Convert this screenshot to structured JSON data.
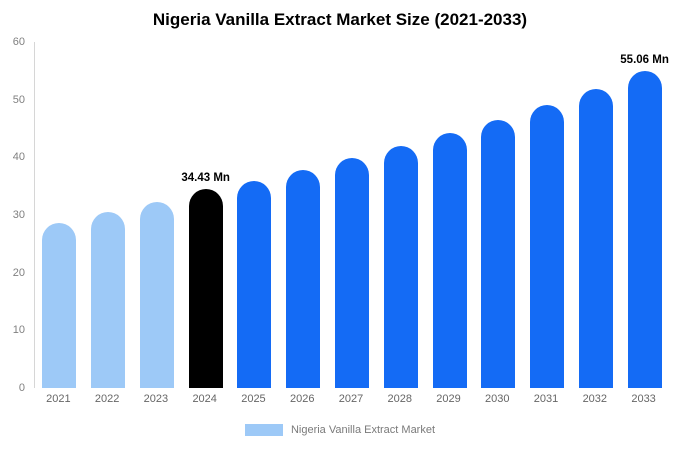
{
  "chart_data": {
    "type": "bar",
    "title": "Nigeria Vanilla Extract Market Size (2021-2033)",
    "categories": [
      "2021",
      "2022",
      "2023",
      "2024",
      "2025",
      "2026",
      "2027",
      "2028",
      "2029",
      "2030",
      "2031",
      "2032",
      "2033"
    ],
    "values": [
      28.6,
      30.5,
      32.2,
      34.43,
      35.9,
      37.8,
      39.9,
      41.9,
      44.2,
      46.4,
      49.1,
      51.8,
      55.06
    ],
    "bar_colors": [
      "#9DC9F7",
      "#9DC9F7",
      "#9DC9F7",
      "#000000",
      "#146BF5",
      "#146BF5",
      "#146BF5",
      "#146BF5",
      "#146BF5",
      "#146BF5",
      "#146BF5",
      "#146BF5",
      "#146BF5"
    ],
    "point_labels": [
      "",
      "",
      "",
      "34.43 Mn",
      "",
      "",
      "",
      "",
      "",
      "",
      "",
      "",
      "55.06 Mn"
    ],
    "xlabel": "",
    "ylabel": "",
    "ylim": [
      0,
      60
    ],
    "yticks": [
      0,
      10,
      20,
      30,
      40,
      50,
      60
    ],
    "grid": false,
    "legend": {
      "label": "Nigeria Vanilla Extract Market",
      "swatch_color": "#9DC9F7",
      "position": "bottom"
    }
  }
}
